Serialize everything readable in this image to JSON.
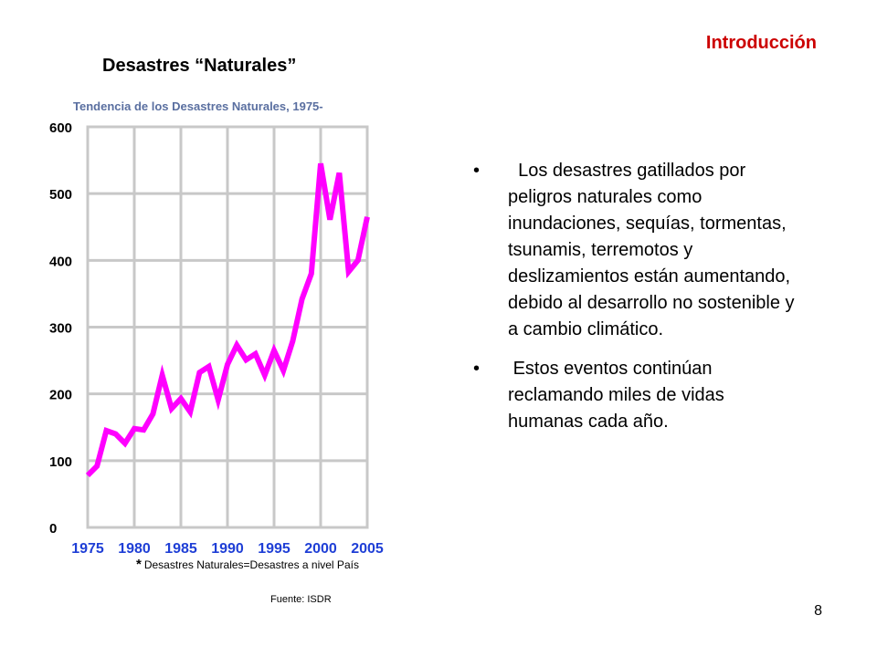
{
  "header": {
    "section": "Introducción",
    "title": "Desastres “Naturales”"
  },
  "chart_data": {
    "type": "line",
    "title": "Tendencia de los Desastres Naturales, 1975-",
    "x": [
      1975,
      1976,
      1977,
      1978,
      1979,
      1980,
      1981,
      1982,
      1983,
      1984,
      1985,
      1986,
      1987,
      1988,
      1989,
      1990,
      1991,
      1992,
      1993,
      1994,
      1995,
      1996,
      1997,
      1998,
      1999,
      2000,
      2001,
      2002,
      2003,
      2004,
      2005
    ],
    "series": [
      {
        "values": [
          78,
          92,
          145,
          140,
          126,
          148,
          146,
          170,
          228,
          178,
          193,
          173,
          232,
          241,
          191,
          244,
          273,
          251,
          260,
          228,
          265,
          235,
          279,
          342,
          380,
          545,
          461,
          531,
          383,
          400,
          465
        ]
      }
    ],
    "xticks": [
      "1975",
      "1980",
      "1985",
      "1990",
      "1995",
      "2000",
      "2005"
    ],
    "yticks": [
      "0",
      "100",
      "200",
      "300",
      "400",
      "500",
      "600"
    ],
    "xlim": [
      1975,
      2005
    ],
    "ylim": [
      0,
      600
    ],
    "grid": true,
    "line_color": "#ff00ff",
    "footnote_marker": "*",
    "footnote": "Desastres Naturales=Desastres a nivel País",
    "source": "Fuente: ISDR"
  },
  "bullets": [
    "  Los desastres gatillados por peligros naturales como inundaciones, sequías, tormentas, tsunamis, terremotos y deslizamientos están aumentando, debido al desarrollo no sostenible y a cambio climático.",
    " Estos eventos continúan reclamando miles de vidas humanas cada año."
  ],
  "bullet_marker": "•",
  "page_number": "8"
}
